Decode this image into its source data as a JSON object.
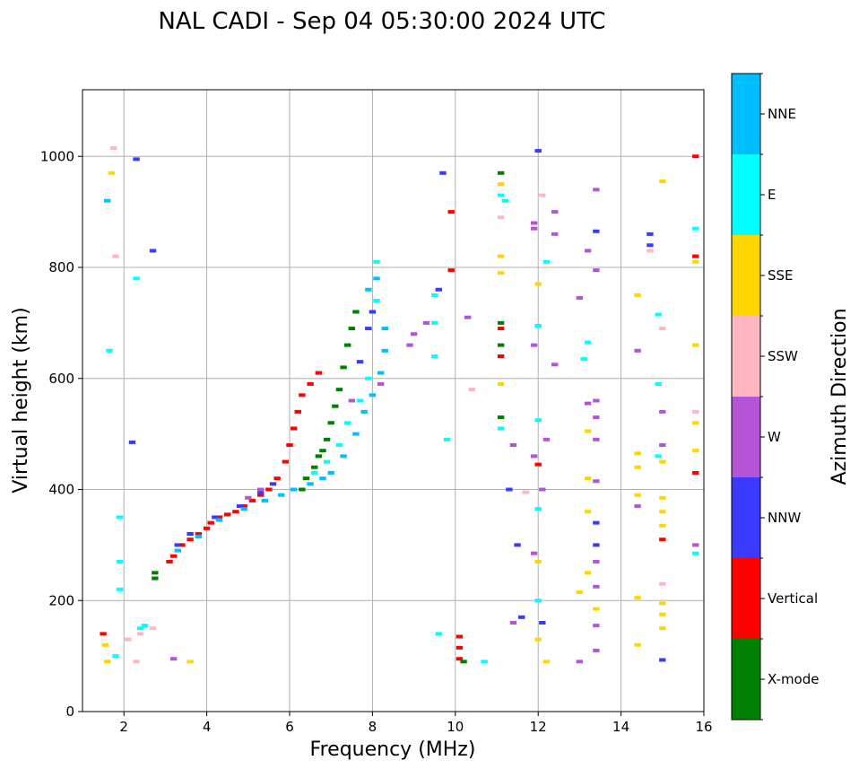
{
  "chart_data": {
    "type": "scatter",
    "title": "NAL CADI - Sep 04 05:30:00 2024 UTC",
    "xlabel": "Frequency (MHz)",
    "ylabel": "Virtual height (km)",
    "xlim": [
      1,
      16
    ],
    "ylim": [
      0,
      1120
    ],
    "xticks": [
      2,
      4,
      6,
      8,
      10,
      12,
      14,
      16
    ],
    "yticks": [
      0,
      200,
      400,
      600,
      800,
      1000
    ],
    "grid": true,
    "colorbar": {
      "title": "Azimuth Direction",
      "categories": [
        {
          "name": "X-mode",
          "color": "#008000"
        },
        {
          "name": "Vertical",
          "color": "#ff0000"
        },
        {
          "name": "NNW",
          "color": "#3a3aff"
        },
        {
          "name": "W",
          "color": "#b455d6"
        },
        {
          "name": "SSW",
          "color": "#ffb6c1"
        },
        {
          "name": "SSE",
          "color": "#ffd700"
        },
        {
          "name": "E",
          "color": "#00ffff"
        },
        {
          "name": "NNE",
          "color": "#00bfff"
        }
      ]
    },
    "series": [
      {
        "name": "X-mode",
        "points": [
          [
            2.75,
            240
          ],
          [
            2.75,
            250
          ],
          [
            6.3,
            400
          ],
          [
            6.4,
            420
          ],
          [
            6.6,
            440
          ],
          [
            6.7,
            460
          ],
          [
            6.8,
            470
          ],
          [
            6.9,
            490
          ],
          [
            7.0,
            520
          ],
          [
            7.1,
            550
          ],
          [
            7.2,
            580
          ],
          [
            7.3,
            620
          ],
          [
            7.4,
            660
          ],
          [
            7.5,
            690
          ],
          [
            7.6,
            720
          ],
          [
            11.1,
            970
          ],
          [
            11.1,
            700
          ],
          [
            11.1,
            660
          ],
          [
            11.1,
            530
          ],
          [
            10.2,
            90
          ]
        ]
      },
      {
        "name": "Vertical",
        "points": [
          [
            3.1,
            270
          ],
          [
            3.2,
            280
          ],
          [
            3.4,
            300
          ],
          [
            3.6,
            310
          ],
          [
            3.8,
            320
          ],
          [
            4.0,
            330
          ],
          [
            4.1,
            340
          ],
          [
            4.3,
            350
          ],
          [
            4.5,
            355
          ],
          [
            4.7,
            360
          ],
          [
            4.9,
            370
          ],
          [
            5.1,
            380
          ],
          [
            5.3,
            390
          ],
          [
            5.5,
            400
          ],
          [
            5.7,
            420
          ],
          [
            5.9,
            450
          ],
          [
            6.0,
            480
          ],
          [
            6.1,
            510
          ],
          [
            6.2,
            540
          ],
          [
            6.3,
            570
          ],
          [
            6.5,
            590
          ],
          [
            6.7,
            610
          ],
          [
            10.1,
            135
          ],
          [
            10.1,
            115
          ],
          [
            10.1,
            95
          ],
          [
            11.1,
            690
          ],
          [
            11.1,
            640
          ],
          [
            12.0,
            445
          ],
          [
            15.8,
            1000
          ],
          [
            15.8,
            820
          ],
          [
            15.8,
            430
          ],
          [
            15.0,
            310
          ],
          [
            1.5,
            140
          ],
          [
            9.9,
            900
          ],
          [
            9.9,
            795
          ]
        ]
      },
      {
        "name": "NNW",
        "points": [
          [
            3.3,
            300
          ],
          [
            3.6,
            320
          ],
          [
            4.2,
            350
          ],
          [
            4.8,
            370
          ],
          [
            5.3,
            395
          ],
          [
            5.6,
            410
          ],
          [
            7.7,
            630
          ],
          [
            7.9,
            690
          ],
          [
            8.0,
            720
          ],
          [
            9.7,
            970
          ],
          [
            9.6,
            760
          ],
          [
            11.3,
            400
          ],
          [
            11.5,
            300
          ],
          [
            11.6,
            170
          ],
          [
            12.0,
            1010
          ],
          [
            12.1,
            160
          ],
          [
            13.4,
            865
          ],
          [
            13.4,
            340
          ],
          [
            13.4,
            300
          ],
          [
            14.7,
            860
          ],
          [
            14.7,
            840
          ],
          [
            15.0,
            93
          ],
          [
            2.3,
            995
          ],
          [
            2.7,
            830
          ],
          [
            2.2,
            485
          ]
        ]
      },
      {
        "name": "W",
        "points": [
          [
            3.2,
            95
          ],
          [
            5.0,
            385
          ],
          [
            5.3,
            400
          ],
          [
            7.5,
            560
          ],
          [
            8.2,
            590
          ],
          [
            8.9,
            660
          ],
          [
            9.0,
            680
          ],
          [
            9.3,
            700
          ],
          [
            10.3,
            710
          ],
          [
            11.4,
            480
          ],
          [
            11.9,
            880
          ],
          [
            11.9,
            870
          ],
          [
            11.9,
            660
          ],
          [
            11.9,
            460
          ],
          [
            11.9,
            285
          ],
          [
            12.4,
            900
          ],
          [
            12.4,
            860
          ],
          [
            12.4,
            625
          ],
          [
            12.2,
            490
          ],
          [
            12.1,
            400
          ],
          [
            13.4,
            940
          ],
          [
            13.4,
            795
          ],
          [
            13.4,
            560
          ],
          [
            13.4,
            530
          ],
          [
            13.4,
            490
          ],
          [
            13.4,
            415
          ],
          [
            13.4,
            270
          ],
          [
            13.4,
            225
          ],
          [
            13.4,
            155
          ],
          [
            13.4,
            110
          ],
          [
            13.2,
            830
          ],
          [
            13.2,
            555
          ],
          [
            14.4,
            650
          ],
          [
            14.4,
            370
          ],
          [
            15.0,
            540
          ],
          [
            15.0,
            480
          ],
          [
            15.8,
            300
          ],
          [
            13.0,
            90
          ],
          [
            13.0,
            745
          ],
          [
            11.4,
            160
          ]
        ]
      },
      {
        "name": "SSW",
        "points": [
          [
            1.75,
            1015
          ],
          [
            1.8,
            820
          ],
          [
            2.3,
            90
          ],
          [
            2.4,
            140
          ],
          [
            2.7,
            150
          ],
          [
            10.4,
            580
          ],
          [
            11.1,
            950
          ],
          [
            11.1,
            890
          ],
          [
            11.7,
            395
          ],
          [
            12.1,
            930
          ],
          [
            14.7,
            830
          ],
          [
            15.0,
            690
          ],
          [
            15.0,
            230
          ],
          [
            15.8,
            540
          ],
          [
            2.1,
            130
          ]
        ]
      },
      {
        "name": "SSE",
        "points": [
          [
            1.7,
            970
          ],
          [
            1.55,
            120
          ],
          [
            1.6,
            90
          ],
          [
            3.6,
            90
          ],
          [
            7.8,
            540
          ],
          [
            11.1,
            950
          ],
          [
            11.1,
            820
          ],
          [
            11.1,
            790
          ],
          [
            11.1,
            590
          ],
          [
            12.0,
            770
          ],
          [
            12.0,
            270
          ],
          [
            12.0,
            130
          ],
          [
            12.2,
            90
          ],
          [
            13.0,
            215
          ],
          [
            13.2,
            505
          ],
          [
            13.2,
            420
          ],
          [
            13.2,
            360
          ],
          [
            13.2,
            250
          ],
          [
            13.4,
            185
          ],
          [
            14.4,
            750
          ],
          [
            14.4,
            465
          ],
          [
            14.4,
            440
          ],
          [
            14.4,
            390
          ],
          [
            14.4,
            205
          ],
          [
            14.4,
            120
          ],
          [
            15.0,
            955
          ],
          [
            15.0,
            450
          ],
          [
            15.0,
            385
          ],
          [
            15.0,
            360
          ],
          [
            15.0,
            335
          ],
          [
            15.0,
            195
          ],
          [
            15.0,
            175
          ],
          [
            15.0,
            150
          ],
          [
            15.8,
            810
          ],
          [
            15.8,
            660
          ],
          [
            15.8,
            520
          ],
          [
            15.8,
            470
          ]
        ]
      },
      {
        "name": "E",
        "points": [
          [
            1.9,
            350
          ],
          [
            1.9,
            270
          ],
          [
            1.9,
            220
          ],
          [
            2.4,
            150
          ],
          [
            2.5,
            155
          ],
          [
            6.6,
            430
          ],
          [
            6.9,
            450
          ],
          [
            7.2,
            480
          ],
          [
            7.4,
            520
          ],
          [
            7.7,
            560
          ],
          [
            7.9,
            600
          ],
          [
            8.1,
            740
          ],
          [
            8.1,
            810
          ],
          [
            9.5,
            750
          ],
          [
            9.5,
            700
          ],
          [
            9.5,
            640
          ],
          [
            9.8,
            490
          ],
          [
            11.1,
            930
          ],
          [
            11.1,
            510
          ],
          [
            11.2,
            920
          ],
          [
            12.0,
            695
          ],
          [
            12.0,
            525
          ],
          [
            12.0,
            365
          ],
          [
            12.0,
            200
          ],
          [
            12.2,
            810
          ],
          [
            13.1,
            635
          ],
          [
            13.2,
            665
          ],
          [
            14.9,
            715
          ],
          [
            14.9,
            590
          ],
          [
            14.9,
            460
          ],
          [
            15.8,
            870
          ],
          [
            15.8,
            285
          ],
          [
            10.7,
            90
          ],
          [
            9.6,
            140
          ],
          [
            2.3,
            780
          ],
          [
            1.65,
            650
          ],
          [
            1.8,
            100
          ]
        ]
      },
      {
        "name": "NNE",
        "points": [
          [
            1.6,
            920
          ],
          [
            3.3,
            290
          ],
          [
            3.8,
            315
          ],
          [
            4.3,
            345
          ],
          [
            4.9,
            365
          ],
          [
            5.4,
            380
          ],
          [
            5.8,
            390
          ],
          [
            6.1,
            400
          ],
          [
            6.5,
            410
          ],
          [
            6.8,
            420
          ],
          [
            7.0,
            430
          ],
          [
            7.3,
            460
          ],
          [
            7.6,
            500
          ],
          [
            7.8,
            540
          ],
          [
            8.0,
            570
          ],
          [
            8.2,
            610
          ],
          [
            8.3,
            650
          ],
          [
            8.3,
            690
          ],
          [
            7.9,
            760
          ],
          [
            8.1,
            780
          ]
        ]
      }
    ]
  }
}
